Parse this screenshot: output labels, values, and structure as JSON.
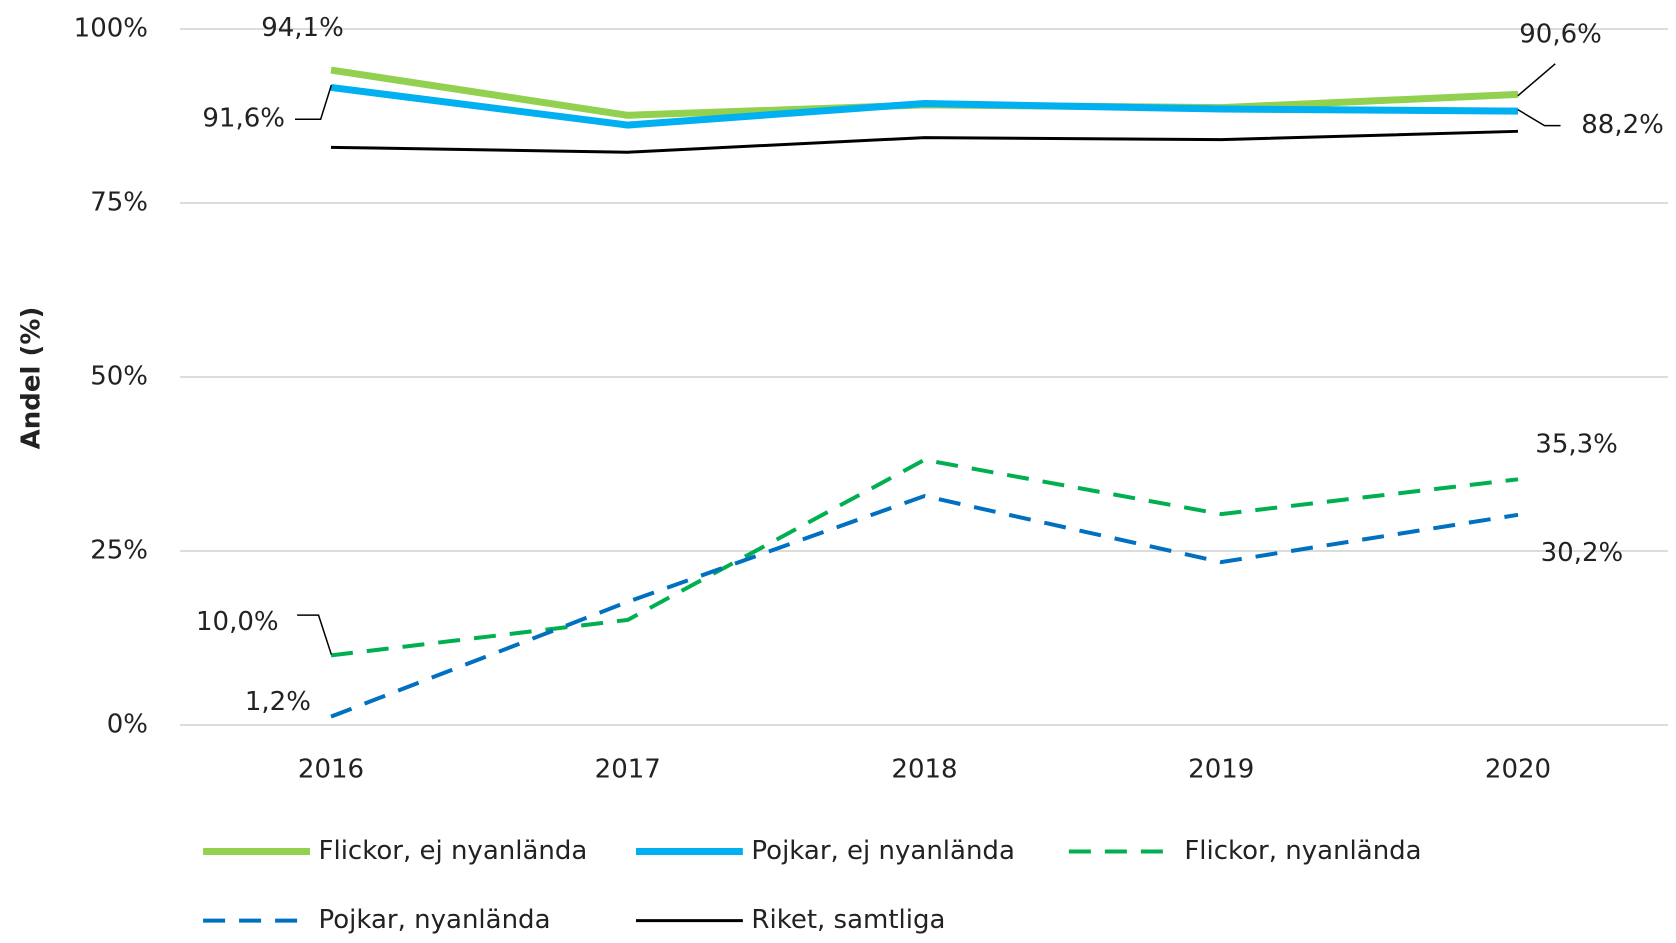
{
  "chart_data": {
    "type": "line",
    "y_label": "Andel (%)",
    "categories": [
      "2016",
      "2017",
      "2018",
      "2019",
      "2020"
    ],
    "ylim": [
      0,
      100
    ],
    "yticks": [
      {
        "value": 0,
        "label": "0%"
      },
      {
        "value": 25,
        "label": "25%"
      },
      {
        "value": 50,
        "label": "50%"
      },
      {
        "value": 75,
        "label": "75%"
      },
      {
        "value": 100,
        "label": "100%"
      }
    ],
    "grid": true,
    "legend": "bottom",
    "series": [
      {
        "name": "Flickor, ej nyanlända",
        "color": "#92d050",
        "dash": false,
        "values": [
          94.1,
          87.6,
          89.1,
          88.7,
          90.6
        ],
        "value_labels": [
          "94,1%",
          null,
          null,
          null,
          "90,6%"
        ]
      },
      {
        "name": "Pojkar, ej nyanlända",
        "color": "#00b0f0",
        "dash": false,
        "values": [
          91.6,
          86.2,
          89.3,
          88.5,
          88.2
        ],
        "value_labels": [
          "91,6%",
          null,
          null,
          null,
          "88,2%"
        ]
      },
      {
        "name": "Flickor, nyanlända",
        "color": "#00b050",
        "dash": true,
        "values": [
          10.0,
          15.1,
          38.1,
          30.3,
          35.3
        ],
        "value_labels": [
          "10,0%",
          null,
          null,
          null,
          "35,3%"
        ]
      },
      {
        "name": "Pojkar, nyanlända",
        "color": "#0070c0",
        "dash": true,
        "values": [
          1.2,
          17.7,
          32.9,
          23.4,
          30.2
        ],
        "value_labels": [
          "1,2%",
          null,
          null,
          null,
          "30,2%"
        ]
      },
      {
        "name": "Riket, samtliga",
        "color": "#000000",
        "dash": false,
        "values": [
          83.0,
          82.3,
          84.4,
          84.1,
          85.3
        ]
      }
    ]
  }
}
